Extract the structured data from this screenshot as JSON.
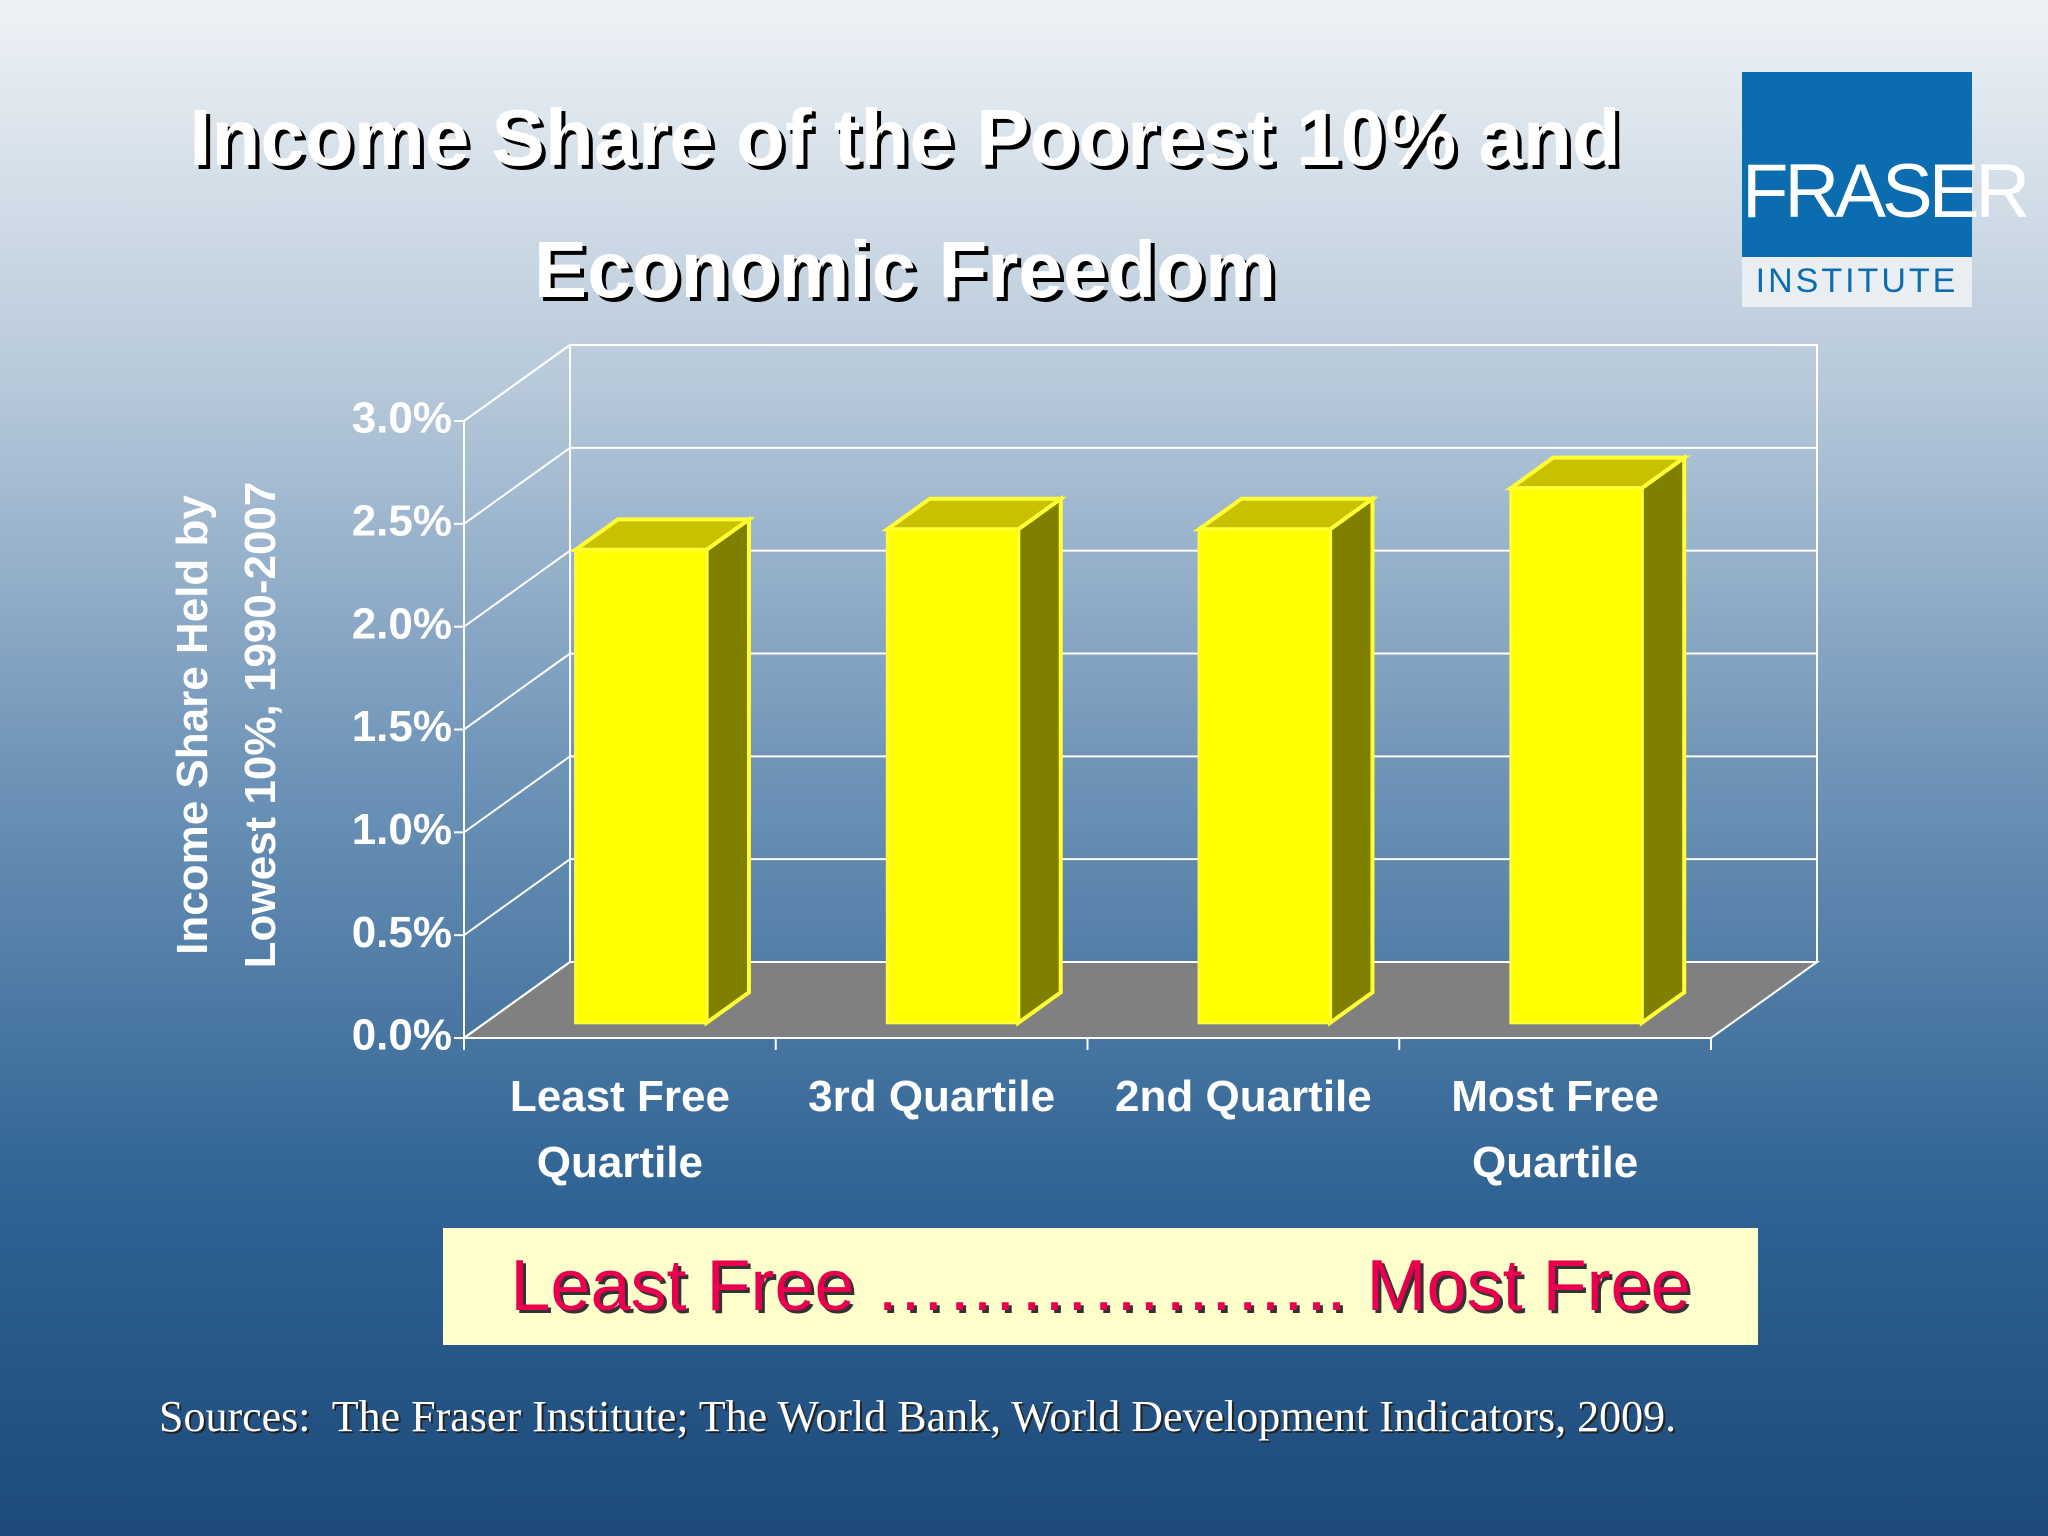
{
  "chart_data": {
    "type": "bar3d",
    "title": "Income Share of the Poorest 10% and Economic Freedom",
    "ylabel": [
      "Income Share Held by",
      "Lowest 10%, 1990-2007"
    ],
    "categories": [
      "Least Free Quartile",
      "3rd Quartile",
      "2nd Quartile",
      "Most Free Quartile"
    ],
    "values": [
      2.3,
      2.4,
      2.4,
      2.6
    ],
    "color": "#ffff00",
    "ylim": [
      0,
      3
    ],
    "yticks": [
      {
        "value": 0,
        "label": "0.0%"
      },
      {
        "value": 0.5,
        "label": "0.5%"
      },
      {
        "value": 1,
        "label": "1.0%"
      },
      {
        "value": 1.5,
        "label": "1.5%"
      },
      {
        "value": 2,
        "label": "2.0%"
      },
      {
        "value": 2.5,
        "label": "2.5%"
      },
      {
        "value": 3,
        "label": "3.0%"
      }
    ],
    "grid": true,
    "banner": "Least Free ……………….. Most Free",
    "source": "Sources:  The Fraser Institute; The World Bank, World Development Indicators, 2009."
  },
  "logo": {
    "name": "FRASER",
    "subtitle": "INSTITUTE"
  }
}
